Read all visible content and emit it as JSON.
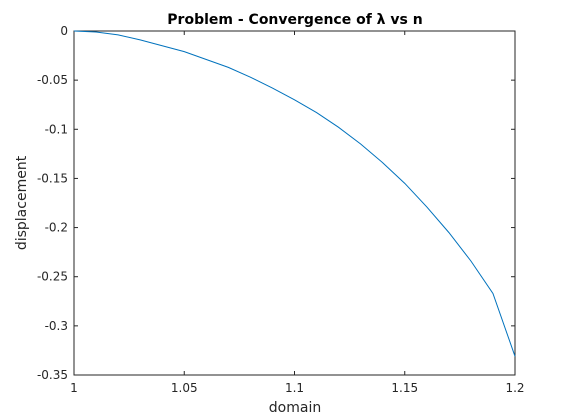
{
  "chart_data": {
    "type": "line",
    "title": "Problem - Convergence of λ vs n",
    "xlabel": "domain",
    "ylabel": "displacement",
    "xlim": [
      1,
      1.2
    ],
    "ylim": [
      -0.35,
      0
    ],
    "xticks": [
      1,
      1.05,
      1.1,
      1.15,
      1.2
    ],
    "xtick_labels": [
      "1",
      "1.05",
      "1.1",
      "1.15",
      "1.2"
    ],
    "yticks": [
      0,
      -0.05,
      -0.1,
      -0.15,
      -0.2,
      -0.25,
      -0.3,
      -0.35
    ],
    "ytick_labels": [
      "0",
      "-0.05",
      "-0.1",
      "-0.15",
      "-0.2",
      "-0.25",
      "-0.3",
      "-0.35"
    ],
    "grid": false,
    "line_color": "#0072BD",
    "series": [
      {
        "x": [
          1.0,
          1.01,
          1.02,
          1.03,
          1.04,
          1.05,
          1.06,
          1.07,
          1.08,
          1.09,
          1.1,
          1.11,
          1.12,
          1.13,
          1.14,
          1.15,
          1.16,
          1.17,
          1.18,
          1.19,
          1.2
        ],
        "y": [
          0,
          -0.001,
          -0.004,
          -0.009,
          -0.015,
          -0.021,
          -0.029,
          -0.037,
          -0.047,
          -0.058,
          -0.07,
          -0.083,
          -0.098,
          -0.115,
          -0.134,
          -0.155,
          -0.179,
          -0.205,
          -0.234,
          -0.267,
          -0.331
        ]
      }
    ]
  }
}
